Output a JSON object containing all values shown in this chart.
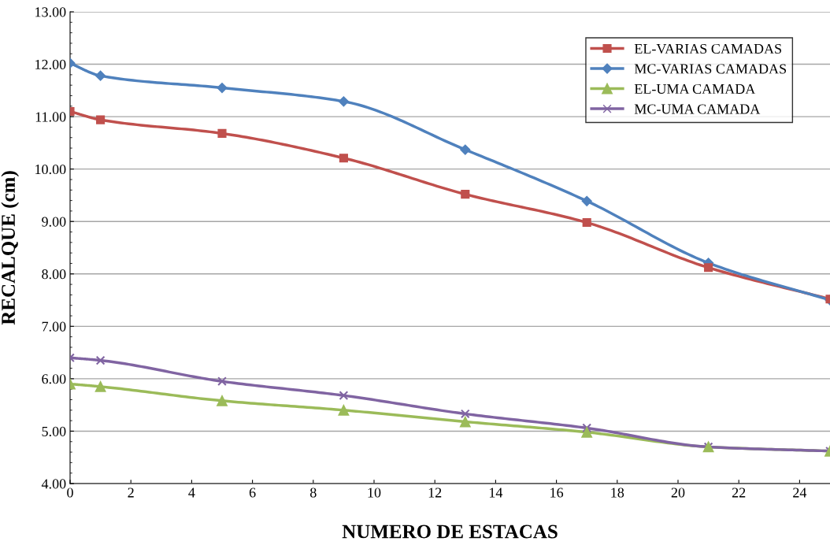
{
  "chart_data": {
    "type": "line",
    "xlabel": "NUMERO DE ESTACAS",
    "ylabel": "RECALQUE (cm)",
    "x": [
      0,
      1,
      5,
      9,
      13,
      17,
      21,
      25
    ],
    "xlim": [
      0,
      25
    ],
    "xticks": [
      0,
      2,
      4,
      6,
      8,
      10,
      12,
      14,
      16,
      18,
      20,
      22,
      24
    ],
    "ylim": [
      4,
      13
    ],
    "yticks": [
      {
        "value": 4,
        "label": "4.00"
      },
      {
        "value": 5,
        "label": "5.00"
      },
      {
        "value": 6,
        "label": "6.00"
      },
      {
        "value": 7,
        "label": "7.00"
      },
      {
        "value": 8,
        "label": "8.00"
      },
      {
        "value": 9,
        "label": "9.00"
      },
      {
        "value": 10,
        "label": "10.00"
      },
      {
        "value": 11,
        "label": "11.00"
      },
      {
        "value": 12,
        "label": "12.00"
      },
      {
        "value": 13,
        "label": "13.00"
      }
    ],
    "grid": "y",
    "legend": "top right",
    "line_style": "solid",
    "series": [
      {
        "name": "EL-VARIAS CAMADAS",
        "color": "#c0504d",
        "marker": "square",
        "values": [
          11.1,
          10.94,
          10.68,
          10.21,
          9.52,
          8.98,
          8.12,
          7.52
        ]
      },
      {
        "name": "MC-VARIAS CAMADAS",
        "color": "#4f81bd",
        "marker": "diamond",
        "values": [
          12.02,
          11.78,
          11.55,
          11.29,
          10.37,
          9.39,
          8.21,
          7.5
        ]
      },
      {
        "name": "EL-UMA CAMADA",
        "color": "#9bbb59",
        "marker": "triangle",
        "values": [
          5.9,
          5.85,
          5.58,
          5.4,
          5.18,
          4.98,
          4.7,
          4.62
        ]
      },
      {
        "name": "MC-UMA CAMADA",
        "color": "#8064a2",
        "marker": "cross",
        "values": [
          6.4,
          6.35,
          5.95,
          5.68,
          5.33,
          5.06,
          4.7,
          4.62
        ]
      }
    ]
  }
}
